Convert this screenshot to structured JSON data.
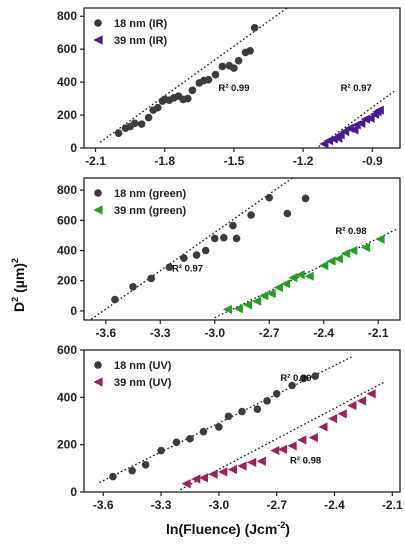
{
  "figure": {
    "ylabel_base": "D",
    "ylabel_sup": "2",
    "ylabel_unit": " (µm)",
    "ylabel_unit_sup": "2",
    "xlabel_main": "ln(Fluence) (Jcm",
    "xlabel_sup": "-2",
    "xlabel_close": ")"
  },
  "colors": {
    "series_18nm": "#3c3c3c",
    "ir_39nm": "#4b1a91",
    "green_39nm": "#23a024",
    "uv_39nm": "#a0205e"
  },
  "chart_data": [
    {
      "type": "scatter",
      "panel": "IR",
      "xlabel": "",
      "ylabel": "",
      "xlim": [
        -2.15,
        -0.78
      ],
      "ylim": [
        0,
        850
      ],
      "xticks": [
        -2.1,
        -1.8,
        -1.5,
        -1.2,
        -0.9
      ],
      "xtick_labels": [
        "-2.1",
        "-1.8",
        "-1.5",
        "-1.2",
        "-0.9"
      ],
      "yticks": [
        0,
        200,
        400,
        600,
        800
      ],
      "ytick_labels": [
        "0",
        "200",
        "400",
        "600",
        "800"
      ],
      "legend_position": "top-left",
      "grid": false,
      "series": [
        {
          "name": "18 nm (IR)",
          "marker": "circle",
          "color": "#3c3c3c",
          "x": [
            -2.0,
            -1.97,
            -1.95,
            -1.93,
            -1.9,
            -1.87,
            -1.85,
            -1.83,
            -1.81,
            -1.8,
            -1.78,
            -1.76,
            -1.74,
            -1.72,
            -1.7,
            -1.68,
            -1.65,
            -1.63,
            -1.61,
            -1.58,
            -1.55,
            -1.52,
            -1.5,
            -1.48,
            -1.45,
            -1.43,
            -1.41
          ],
          "y": [
            90,
            120,
            130,
            150,
            145,
            185,
            230,
            245,
            285,
            295,
            290,
            305,
            315,
            295,
            300,
            350,
            395,
            410,
            415,
            445,
            495,
            500,
            485,
            530,
            580,
            590,
            730
          ]
        },
        {
          "name": "39 nm (IR)",
          "marker": "triangle-left",
          "color": "#4b1a91",
          "x": [
            -1.11,
            -1.09,
            -1.07,
            -1.05,
            -1.04,
            -1.02,
            -1.0,
            -0.98,
            -0.97,
            -0.95,
            -0.93,
            -0.91,
            -0.89,
            -0.88,
            -0.87
          ],
          "y": [
            25,
            45,
            55,
            60,
            80,
            100,
            120,
            110,
            140,
            150,
            175,
            180,
            205,
            220,
            230
          ]
        }
      ],
      "fits": [
        {
          "series": "18 nm (IR)",
          "x": [
            -2.08,
            -1.22
          ],
          "y": [
            35,
            900
          ]
        },
        {
          "series": "39 nm (IR)",
          "x": [
            -1.16,
            -0.8
          ],
          "y": [
            -20,
            350
          ]
        }
      ],
      "annotations": [
        {
          "text": "R² 0.99",
          "x": -1.5,
          "y": 345
        },
        {
          "text": "R² 0.97",
          "x": -0.97,
          "y": 345
        }
      ]
    },
    {
      "type": "scatter",
      "panel": "green",
      "xlabel": "",
      "ylabel": "",
      "xlim": [
        -3.72,
        -1.98
      ],
      "ylim": [
        -60,
        880
      ],
      "xticks": [
        -3.6,
        -3.3,
        -3.0,
        -2.7,
        -2.4,
        -2.1
      ],
      "xtick_labels": [
        "-3.6",
        "-3.3",
        "-3.0",
        "-2.7",
        "-2.4",
        "-2.1"
      ],
      "yticks": [
        0,
        200,
        400,
        600,
        800
      ],
      "ytick_labels": [
        "0",
        "200",
        "400",
        "600",
        "800"
      ],
      "legend_position": "top-left",
      "grid": false,
      "series": [
        {
          "name": "18 nm (green)",
          "marker": "circle",
          "color": "#3c3c3c",
          "x": [
            -3.55,
            -3.45,
            -3.35,
            -3.25,
            -3.17,
            -3.1,
            -3.05,
            -3.0,
            -2.95,
            -2.9,
            -2.88,
            -2.8,
            -2.7,
            -2.6,
            -2.5
          ],
          "y": [
            75,
            160,
            215,
            290,
            350,
            370,
            400,
            480,
            485,
            565,
            480,
            635,
            750,
            645,
            745
          ]
        },
        {
          "name": "39 nm (green)",
          "marker": "triangle-left",
          "color": "#23a024",
          "x": [
            -2.93,
            -2.87,
            -2.82,
            -2.77,
            -2.73,
            -2.69,
            -2.65,
            -2.61,
            -2.57,
            -2.53,
            -2.48,
            -2.4,
            -2.36,
            -2.32,
            -2.28,
            -2.24,
            -2.17,
            -2.09
          ],
          "y": [
            10,
            15,
            40,
            65,
            100,
            115,
            155,
            180,
            220,
            240,
            230,
            300,
            330,
            345,
            380,
            400,
            420,
            475
          ]
        }
      ],
      "fits": [
        {
          "series": "18 nm (green)",
          "x": [
            -3.68,
            -2.55
          ],
          "y": [
            -55,
            900
          ]
        },
        {
          "series": "39 nm (green)",
          "x": [
            -3.0,
            -2.0
          ],
          "y": [
            -45,
            540
          ]
        }
      ],
      "annotations": [
        {
          "text": "R² 0.97",
          "x": -3.15,
          "y": 260
        },
        {
          "text": "R² 0.98",
          "x": -2.25,
          "y": 510
        }
      ]
    },
    {
      "type": "scatter",
      "panel": "UV",
      "xlabel": "ln(Fluence) (Jcm⁻²)",
      "ylabel": "",
      "xlim": [
        -3.7,
        -2.06
      ],
      "ylim": [
        0,
        600
      ],
      "xticks": [
        -3.6,
        -3.3,
        -3.0,
        -2.7,
        -2.4,
        -2.1
      ],
      "xtick_labels": [
        "-3.6",
        "-3.3",
        "-3.0",
        "-2.7",
        "-2.4",
        "-2.1"
      ],
      "yticks": [
        0,
        200,
        400,
        600
      ],
      "ytick_labels": [
        "0",
        "200",
        "400",
        "600"
      ],
      "legend_position": "top-left",
      "grid": false,
      "series": [
        {
          "name": "18 nm (UV)",
          "marker": "circle",
          "color": "#3c3c3c",
          "x": [
            -3.55,
            -3.45,
            -3.38,
            -3.3,
            -3.22,
            -3.15,
            -3.08,
            -3.0,
            -2.95,
            -2.88,
            -2.8,
            -2.75,
            -2.7,
            -2.62,
            -2.56,
            -2.5
          ],
          "y": [
            65,
            90,
            115,
            175,
            210,
            225,
            255,
            275,
            320,
            340,
            350,
            385,
            415,
            450,
            480,
            490
          ]
        },
        {
          "name": "39 nm (UV)",
          "marker": "triangle-left",
          "color": "#a0205e",
          "x": [
            -3.17,
            -3.12,
            -3.08,
            -3.03,
            -2.98,
            -2.93,
            -2.88,
            -2.83,
            -2.78,
            -2.71,
            -2.67,
            -2.62,
            -2.57,
            -2.51,
            -2.46,
            -2.41,
            -2.36,
            -2.31,
            -2.26,
            -2.21
          ],
          "y": [
            35,
            55,
            60,
            75,
            85,
            95,
            110,
            125,
            130,
            175,
            180,
            195,
            220,
            230,
            275,
            310,
            330,
            365,
            385,
            415
          ]
        }
      ],
      "fits": [
        {
          "series": "18 nm (UV)",
          "x": [
            -3.62,
            -2.3
          ],
          "y": [
            40,
            575
          ]
        },
        {
          "series": "39 nm (UV)",
          "x": [
            -3.2,
            -2.14
          ],
          "y": [
            10,
            465
          ]
        }
      ],
      "annotations": [
        {
          "text": "R² 0.99",
          "x": -2.6,
          "y": 470
        },
        {
          "text": "R² 0.98",
          "x": -2.55,
          "y": 120
        }
      ]
    }
  ]
}
